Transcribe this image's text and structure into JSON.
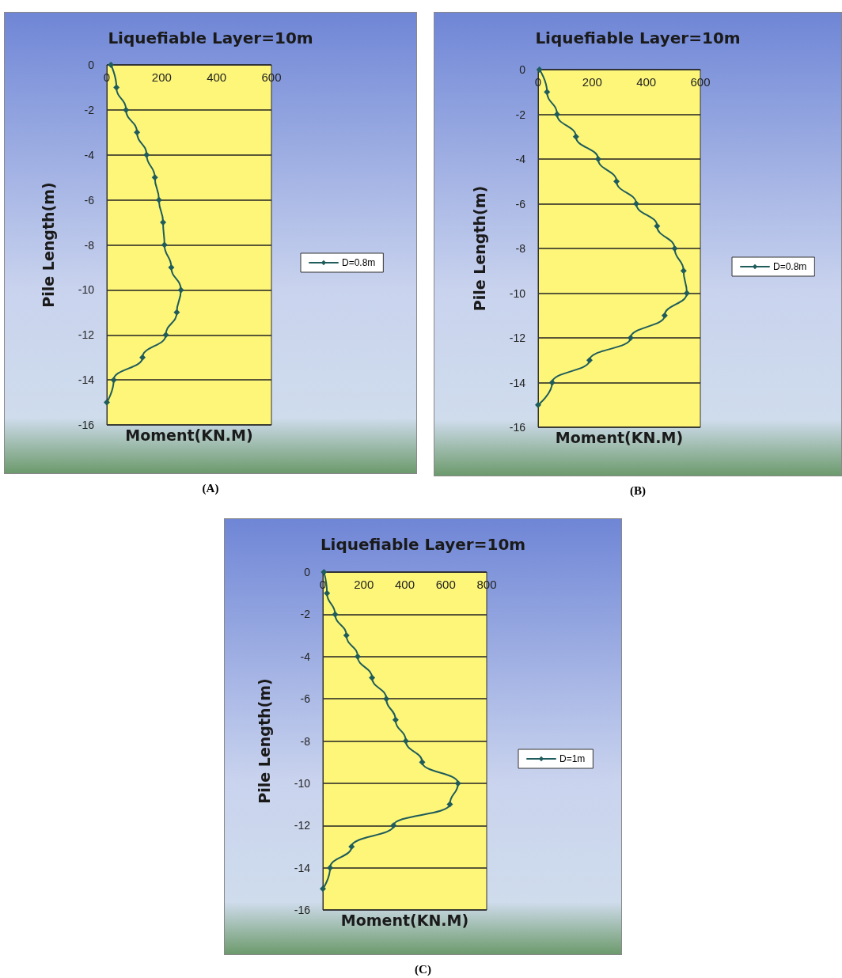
{
  "chart_data": [
    {
      "type": "line",
      "title": "Liquefiable Layer=10m",
      "xlabel": "Moment(KN.M)",
      "ylabel": "Pile Length(m)",
      "annotations": [
        "(A)"
      ],
      "series": [
        {
          "name": "D=0.8m",
          "color": "#1f5c5c",
          "x": [
            15,
            35,
            70,
            110,
            145,
            175,
            190,
            205,
            210,
            235,
            270,
            255,
            215,
            130,
            25,
            0
          ],
          "values": [
            0,
            -1,
            -2,
            -3,
            -4,
            -5,
            -6,
            -7,
            -8,
            -9,
            -10,
            -11,
            -12,
            -13,
            -14,
            -15
          ]
        }
      ],
      "xlim": [
        0,
        600
      ],
      "xticks": [
        0,
        200,
        400,
        600
      ],
      "ylim": [
        -16,
        0
      ],
      "yticks": [
        0,
        -2,
        -4,
        -6,
        -8,
        -10,
        -12,
        -14,
        -16
      ],
      "grid": "y",
      "legend": "right",
      "marker": "diamond",
      "line_style": "solid"
    },
    {
      "type": "line",
      "title": "Liquefiable Layer=10m",
      "xlabel": "Moment(KN.M)",
      "ylabel": "Pile Length(m)",
      "annotations": [
        "(B)"
      ],
      "series": [
        {
          "name": "D=0.8m",
          "color": "#1f5c5c",
          "x": [
            5,
            33,
            70,
            140,
            222,
            290,
            363,
            440,
            505,
            538,
            550,
            468,
            342,
            190,
            52,
            0
          ],
          "values": [
            0,
            -1,
            -2,
            -3,
            -4,
            -5,
            -6,
            -7,
            -8,
            -9,
            -10,
            -11,
            -12,
            -13,
            -14,
            -15
          ]
        }
      ],
      "xlim": [
        0,
        600
      ],
      "xticks": [
        0,
        200,
        400,
        600
      ],
      "ylim": [
        -16,
        0
      ],
      "yticks": [
        0,
        -2,
        -4,
        -6,
        -8,
        -10,
        -12,
        -14,
        -16
      ],
      "grid": "y",
      "legend": "right",
      "marker": "diamond",
      "line_style": "solid"
    },
    {
      "type": "line",
      "title": "Liquefiable Layer=10m",
      "xlabel": "Moment(KN.M)",
      "ylabel": "Pile Length(m)",
      "annotations": [
        "(C)"
      ],
      "series": [
        {
          "name": "D=1m",
          "color": "#1f5c5c",
          "x": [
            5,
            20,
            60,
            115,
            170,
            240,
            310,
            355,
            405,
            485,
            660,
            620,
            345,
            140,
            35,
            0
          ],
          "values": [
            0,
            -1,
            -2,
            -3,
            -4,
            -5,
            -6,
            -7,
            -8,
            -9,
            -10,
            -11,
            -12,
            -13,
            -14,
            -15
          ]
        }
      ],
      "xlim": [
        0,
        800
      ],
      "xticks": [
        0,
        200,
        400,
        600,
        800
      ],
      "ylim": [
        -16,
        0
      ],
      "yticks": [
        0,
        -2,
        -4,
        -6,
        -8,
        -10,
        -12,
        -14,
        -16
      ],
      "grid": "y",
      "legend": "right",
      "marker": "diamond",
      "line_style": "solid"
    }
  ]
}
